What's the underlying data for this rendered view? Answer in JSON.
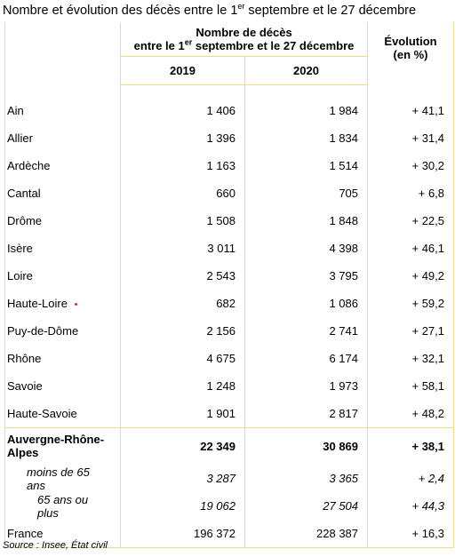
{
  "title": {
    "before": "Nombre et évolution des décès entre le 1",
    "sup": "er",
    "after": " septembre et le 27 décembre"
  },
  "table": {
    "header": {
      "group_line1": "Nombre de décès",
      "group_line2": {
        "before": "entre le 1",
        "sup": "er",
        "after": " septembre et le 27 décembre"
      },
      "columns": [
        "2019",
        "2020"
      ],
      "evolution": [
        "Évolution",
        "(en %)"
      ]
    },
    "rows": [
      [
        "Ain",
        "1 406",
        "1 984",
        "+ 41,1"
      ],
      [
        "Allier",
        "1 396",
        "1 834",
        "+ 31,4"
      ],
      [
        "Ardèche",
        "1 163",
        "1 514",
        "+ 30,2"
      ],
      [
        "Cantal",
        "660",
        "705",
        "+ 6,8"
      ],
      [
        "Drôme",
        "1 508",
        "1 848",
        "+ 22,5"
      ],
      [
        "Isère",
        "3 011",
        "4 398",
        "+ 46,1"
      ],
      [
        "Loire",
        "2 543",
        "3 795",
        "+ 49,2"
      ],
      [
        "Haute-Loire",
        "682",
        "1 086",
        "+ 59,2"
      ],
      [
        "Puy-de-Dôme",
        "2 156",
        "2 741",
        "+ 27,1"
      ],
      [
        "Rhône",
        "4 675",
        "6 174",
        "+ 32,1"
      ],
      [
        "Savoie",
        "1 248",
        "1 973",
        "+ 58,1"
      ],
      [
        "Haute-Savoie",
        "1 901",
        "2 817",
        "+ 48,2"
      ],
      [
        "Auvergne-Rhône-Alpes",
        "22 349",
        "30 869",
        "+ 38,1"
      ],
      [
        "moins de 65 ans",
        "3 287",
        "3 365",
        "+ 2,4"
      ],
      [
        "65 ans ou plus",
        "19 062",
        "27 504",
        "+ 44,3"
      ],
      [
        "France",
        "196 372",
        "228 387",
        "+ 16,3"
      ]
    ]
  },
  "source": "Source : Insee, État civil"
}
